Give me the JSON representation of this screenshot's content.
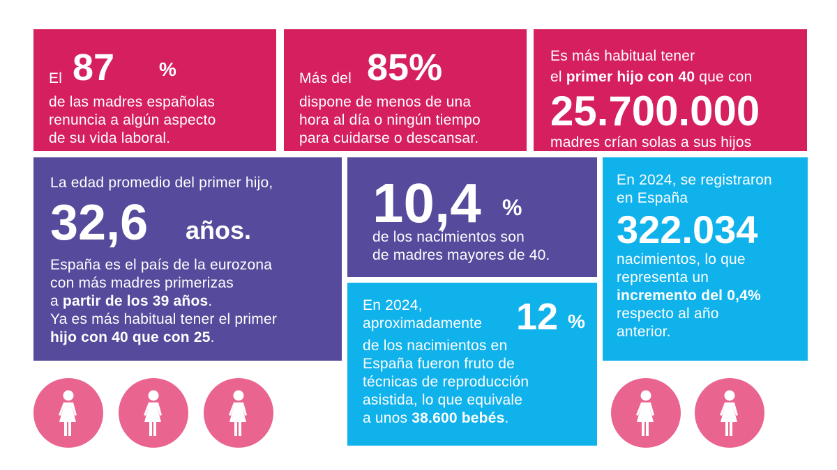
{
  "card1": {
    "prefix": "El",
    "value": "87",
    "unit": "%",
    "lines": [
      "de las madres españolas",
      "renuncia a algún aspecto",
      "de su vida laboral."
    ]
  },
  "card2": {
    "prefix": "Más del",
    "value": "85%",
    "lines": [
      "dispone de menos de una",
      "hora al día o ningún tiempo",
      "para cuidarse o descansar."
    ]
  },
  "card3": {
    "line1": "Es más habitual tener",
    "line2_pre": "el ",
    "line2_bold": "primer hijo con 40",
    "line2_post": " que con",
    "value": "25.700.000",
    "line3": "madres crían solas a sus hijos"
  },
  "card4": {
    "line1": "La edad promedio del primer hijo,",
    "value": "32,6",
    "unit": "años.",
    "l_a": "España es el país de la eurozona",
    "l_b": "con más madres primerizas",
    "l_c_pre": "a ",
    "l_c_bold": "partir de los 39 años",
    "l_c_post": ".",
    "l_d": "Ya es más habitual tener el primer",
    "l_e_bold": "hijo con 40 que con 25",
    "l_e_post": "."
  },
  "card5": {
    "value": "10,4",
    "unit": "%",
    "lines": [
      "de los nacimientos son",
      "de madres mayores de 40."
    ]
  },
  "card6": {
    "line1a": "En 2024,",
    "line1b": "aproximadamente",
    "value": "12",
    "unit": "%",
    "l_a": "de los nacimientos en",
    "l_b": "España fueron fruto de",
    "l_c": "técnicas de reproducción",
    "l_d": "asistida, lo que equivale",
    "l_e_pre": "a unos ",
    "l_e_bold": "38.600 bebés",
    "l_e_post": "."
  },
  "card7": {
    "line1a": "En 2024, se registraron",
    "line1b": "en España",
    "value": "322.034",
    "l_a": "nacimientos, lo que",
    "l_b": "representa un",
    "l_c_bold": "incremento del 0,4%",
    "l_d": "respecto al año",
    "l_e": "anterior."
  },
  "icons": [
    "woman-icon",
    "woman-icon",
    "woman-icon",
    "woman-icon",
    "woman-icon"
  ],
  "colors": {
    "pink": "#d51f5f",
    "purple": "#554a9b",
    "blue": "#10b2ec",
    "circle": "#e9648e"
  }
}
